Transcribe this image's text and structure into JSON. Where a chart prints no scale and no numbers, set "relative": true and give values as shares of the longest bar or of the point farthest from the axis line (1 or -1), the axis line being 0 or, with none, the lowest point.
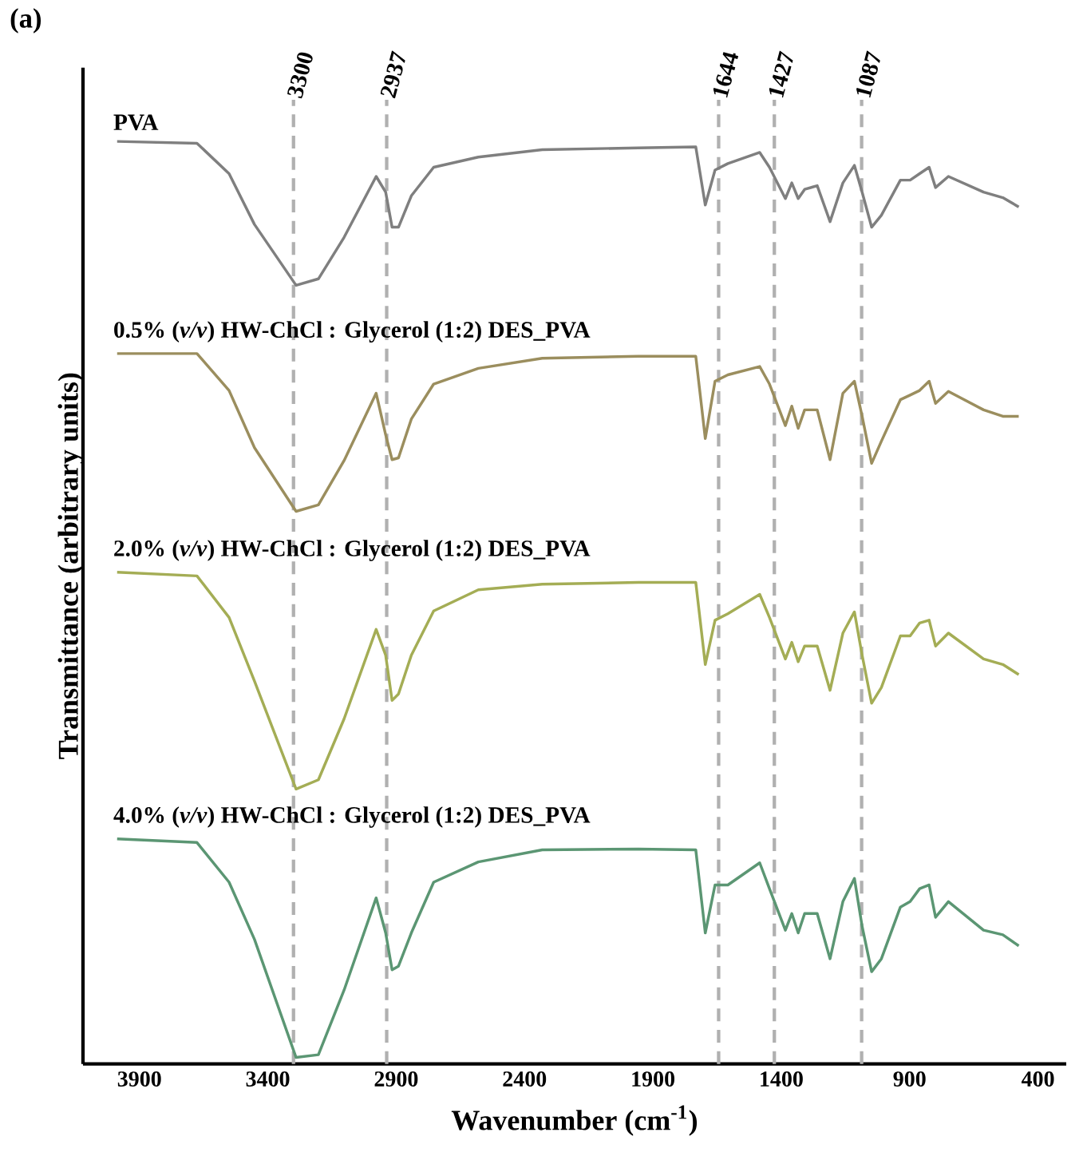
{
  "chart_data": {
    "type": "line",
    "relative": true,
    "xlabel": "Wavenumber (cm$^{-1}$)",
    "ylabel": "Transmittance (arbitrary units)",
    "annotations": [
      "(a)"
    ],
    "xlim": [
      4120,
      290
    ],
    "xticks": [
      3900,
      3400,
      2900,
      2400,
      1900,
      1400,
      900,
      400
    ],
    "tick_labels": "x",
    "x": [
      3987,
      3676,
      3551,
      3452,
      3290,
      3203,
      3103,
      2978,
      2941,
      2916,
      2891,
      2841,
      2754,
      2580,
      2331,
      1957,
      1733,
      1696,
      1658,
      1608,
      1484,
      1446,
      1384,
      1359,
      1334,
      1309,
      1260,
      1210,
      1160,
      1115,
      1085,
      1048,
      1010,
      936,
      898,
      861,
      824,
      799,
      749,
      612,
      537,
      475
    ],
    "series": [
      {
        "name": "PVA",
        "color": "#7f7f7f",
        "values": [
          1.0,
          0.998,
          0.965,
          0.91,
          0.844,
          0.851,
          0.896,
          0.962,
          0.945,
          0.907,
          0.907,
          0.941,
          0.972,
          0.983,
          0.991,
          0.993,
          0.994,
          0.931,
          0.969,
          0.976,
          0.988,
          0.972,
          0.938,
          0.955,
          0.938,
          0.948,
          0.952,
          0.913,
          0.955,
          0.974,
          0.945,
          0.907,
          0.92,
          0.958,
          0.958,
          0.965,
          0.972,
          0.95,
          0.962,
          0.945,
          0.939,
          0.929
        ]
      },
      {
        "name": "0.5% (*v/v*) HW-ChCl : Glycerol (1:2) DES_PVA",
        "color": "#9b8e5e",
        "values": [
          0.77,
          0.77,
          0.73,
          0.668,
          0.599,
          0.606,
          0.654,
          0.727,
          0.682,
          0.655,
          0.657,
          0.699,
          0.737,
          0.754,
          0.765,
          0.767,
          0.767,
          0.678,
          0.74,
          0.747,
          0.756,
          0.737,
          0.692,
          0.713,
          0.689,
          0.709,
          0.709,
          0.655,
          0.727,
          0.74,
          0.702,
          0.651,
          0.675,
          0.72,
          0.725,
          0.73,
          0.74,
          0.716,
          0.729,
          0.709,
          0.702,
          0.702
        ]
      },
      {
        "name": "2.0% (*v/v*) HW-ChCl : Glycerol (1:2) DES_PVA",
        "color": "#a4ad55",
        "values": [
          0.533,
          0.529,
          0.484,
          0.415,
          0.298,
          0.308,
          0.374,
          0.471,
          0.443,
          0.394,
          0.401,
          0.443,
          0.491,
          0.514,
          0.52,
          0.522,
          0.522,
          0.433,
          0.481,
          0.488,
          0.509,
          0.484,
          0.439,
          0.457,
          0.436,
          0.453,
          0.453,
          0.405,
          0.467,
          0.49,
          0.443,
          0.391,
          0.408,
          0.464,
          0.464,
          0.478,
          0.481,
          0.453,
          0.467,
          0.439,
          0.433,
          0.422
        ]
      },
      {
        "name": "4.0% (*v/v*) HW-ChCl : Glycerol (1:2) DES_PVA",
        "color": "#5b9673",
        "values": [
          0.244,
          0.24,
          0.197,
          0.135,
          0.007,
          0.01,
          0.08,
          0.18,
          0.142,
          0.102,
          0.106,
          0.142,
          0.197,
          0.219,
          0.232,
          0.233,
          0.232,
          0.142,
          0.194,
          0.194,
          0.218,
          0.19,
          0.145,
          0.163,
          0.142,
          0.163,
          0.163,
          0.114,
          0.176,
          0.201,
          0.149,
          0.1,
          0.114,
          0.17,
          0.176,
          0.19,
          0.194,
          0.159,
          0.176,
          0.145,
          0.14,
          0.128
        ]
      }
    ],
    "ref_lines": [
      {
        "axis": "x",
        "value": 3300,
        "label": "3300",
        "color": "#b0b0b0",
        "line_style": "dashed"
      },
      {
        "axis": "x",
        "value": 2937,
        "label": "2937",
        "color": "#b0b0b0",
        "line_style": "dashed"
      },
      {
        "axis": "x",
        "value": 1644,
        "label": "1644",
        "color": "#b0b0b0",
        "line_style": "dashed"
      },
      {
        "axis": "x",
        "value": 1427,
        "label": "1427",
        "color": "#b0b0b0",
        "line_style": "dashed"
      },
      {
        "axis": "x",
        "value": 1087,
        "label": "1087",
        "color": "#b0b0b0",
        "line_style": "dashed"
      }
    ]
  }
}
